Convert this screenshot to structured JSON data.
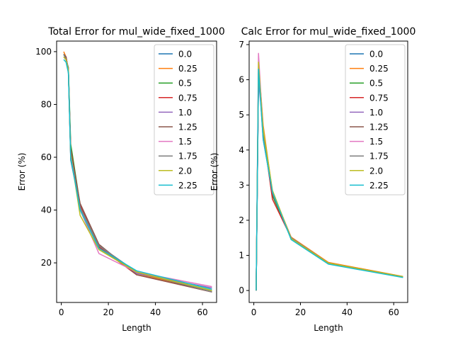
{
  "chart_data": [
    {
      "type": "line",
      "title": "Total Error for mul_wide_fixed_1000",
      "xlabel": "Length",
      "ylabel": "Error (%)",
      "xlim": [
        -2,
        66
      ],
      "ylim": [
        5,
        104
      ],
      "xticks": [
        0,
        20,
        40,
        60
      ],
      "yticks": [
        20,
        40,
        60,
        80,
        100
      ],
      "legend_placement": "upper right",
      "grid": false,
      "x": [
        1,
        2,
        3,
        4,
        8,
        16,
        32,
        64
      ],
      "series": [
        {
          "name": "0.0",
          "color": "#1f77b4",
          "values": [
            98,
            97,
            93,
            59,
            41,
            26.5,
            16.5,
            9.5
          ]
        },
        {
          "name": "0.25",
          "color": "#ff7f0e",
          "values": [
            100,
            98,
            93,
            60,
            40,
            25.5,
            16,
            9
          ]
        },
        {
          "name": "0.5",
          "color": "#2ca02c",
          "values": [
            99,
            97,
            94,
            65,
            42,
            26,
            16.5,
            9.5
          ]
        },
        {
          "name": "0.75",
          "color": "#d62728",
          "values": [
            99,
            98,
            93,
            63,
            42,
            26,
            15.5,
            9
          ]
        },
        {
          "name": "1.0",
          "color": "#9467bd",
          "values": [
            98,
            97,
            93,
            61,
            41,
            26.5,
            16,
            10.5
          ]
        },
        {
          "name": "1.25",
          "color": "#8c564b",
          "values": [
            99,
            98,
            93,
            62,
            42.5,
            27,
            15.5,
            9
          ]
        },
        {
          "name": "1.5",
          "color": "#e377c2",
          "values": [
            98,
            97,
            93,
            61,
            40,
            23.5,
            16.5,
            11
          ]
        },
        {
          "name": "1.75",
          "color": "#7f7f7f",
          "values": [
            99,
            97,
            94,
            60,
            41,
            26.5,
            16.5,
            9
          ]
        },
        {
          "name": "2.0",
          "color": "#bcbd22",
          "values": [
            98,
            97,
            93,
            61,
            38,
            25,
            16.5,
            9.5
          ]
        },
        {
          "name": "2.25",
          "color": "#17becf",
          "values": [
            97,
            96,
            92,
            60,
            40,
            25.5,
            17,
            10
          ]
        }
      ]
    },
    {
      "type": "line",
      "title": "Calc Error for mul_wide_fixed_1000",
      "xlabel": "Length",
      "ylabel": "Error (%)",
      "xlim": [
        -2,
        66
      ],
      "ylim": [
        -0.34,
        7.1
      ],
      "xticks": [
        0,
        20,
        40,
        60
      ],
      "yticks": [
        0,
        1,
        2,
        3,
        4,
        5,
        6,
        7
      ],
      "legend_placement": "upper right",
      "grid": false,
      "x": [
        1,
        2,
        3,
        4,
        8,
        16,
        32,
        64
      ],
      "series": [
        {
          "name": "0.0",
          "color": "#1f77b4",
          "values": [
            0,
            6.2,
            5.4,
            4.4,
            2.8,
            1.5,
            0.78,
            0.38
          ]
        },
        {
          "name": "0.25",
          "color": "#ff7f0e",
          "values": [
            0,
            6.3,
            5.6,
            4.7,
            2.8,
            1.52,
            0.8,
            0.4
          ]
        },
        {
          "name": "0.5",
          "color": "#2ca02c",
          "values": [
            0,
            6.0,
            5.5,
            4.5,
            2.7,
            1.48,
            0.78,
            0.39
          ]
        },
        {
          "name": "0.75",
          "color": "#d62728",
          "values": [
            0,
            6.1,
            5.4,
            4.5,
            2.6,
            1.5,
            0.76,
            0.38
          ]
        },
        {
          "name": "1.0",
          "color": "#9467bd",
          "values": [
            0,
            6.0,
            5.3,
            4.3,
            2.8,
            1.47,
            0.76,
            0.38
          ]
        },
        {
          "name": "1.25",
          "color": "#8c564b",
          "values": [
            0,
            6.2,
            5.4,
            4.5,
            2.75,
            1.5,
            0.77,
            0.38
          ]
        },
        {
          "name": "1.5",
          "color": "#e377c2",
          "values": [
            0,
            6.75,
            5.6,
            4.6,
            2.8,
            1.5,
            0.78,
            0.38
          ]
        },
        {
          "name": "1.75",
          "color": "#7f7f7f",
          "values": [
            0,
            6.3,
            5.4,
            4.5,
            2.8,
            1.5,
            0.78,
            0.38
          ]
        },
        {
          "name": "2.0",
          "color": "#bcbd22",
          "values": [
            0,
            6.5,
            5.5,
            4.6,
            2.85,
            1.48,
            0.78,
            0.39
          ]
        },
        {
          "name": "2.25",
          "color": "#17becf",
          "values": [
            0,
            6.3,
            5.3,
            4.3,
            2.8,
            1.45,
            0.75,
            0.37
          ]
        }
      ]
    }
  ]
}
